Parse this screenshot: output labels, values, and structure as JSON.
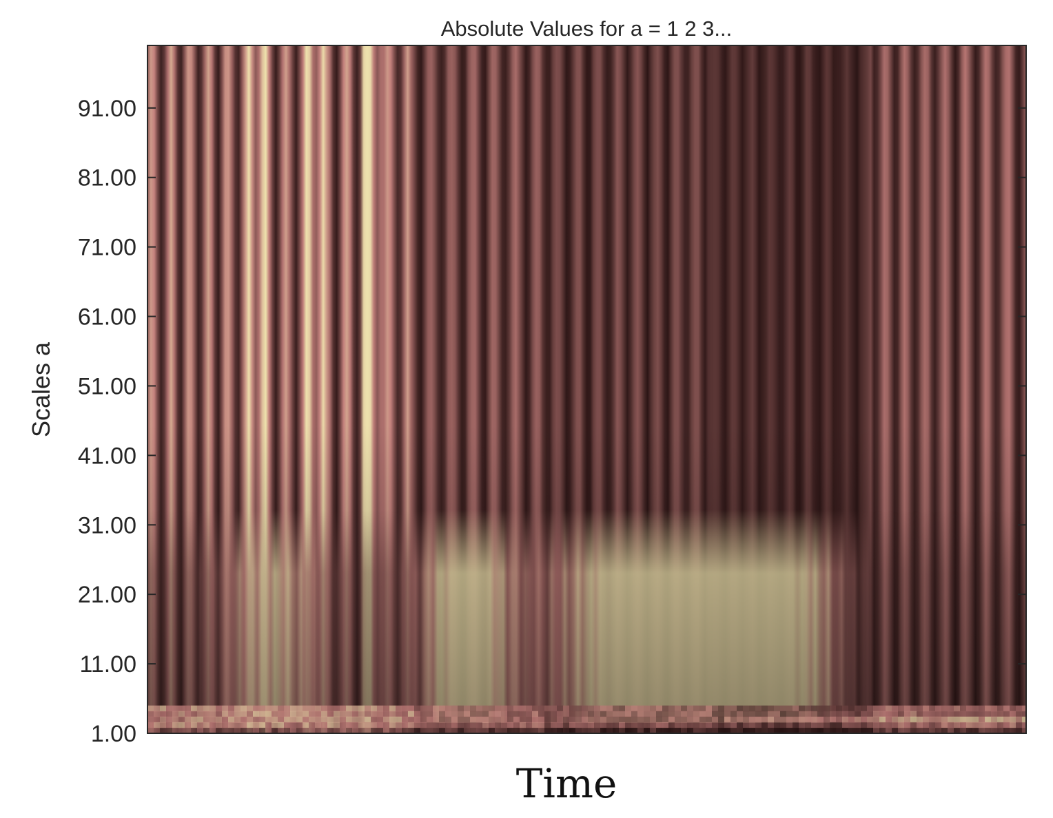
{
  "chart_data": {
    "type": "heatmap",
    "title": "Absolute Values for a =  1 2 3...",
    "xlabel": "Time",
    "ylabel": "Scales a",
    "y_ticks": [
      "1.00",
      "11.00",
      "21.00",
      "31.00",
      "41.00",
      "51.00",
      "61.00",
      "71.00",
      "81.00",
      "91.00"
    ],
    "y_tick_values": [
      1,
      11,
      21,
      31,
      41,
      51,
      61,
      71,
      81,
      91
    ],
    "ylim": [
      1,
      100
    ],
    "x_ticks": [],
    "colormap": "pink",
    "colors": {
      "dark": "#2a1414",
      "mid": "#c17d7a",
      "bright": "#eee2ad",
      "axis": "#262626"
    },
    "grid": false,
    "legend": "none"
  }
}
